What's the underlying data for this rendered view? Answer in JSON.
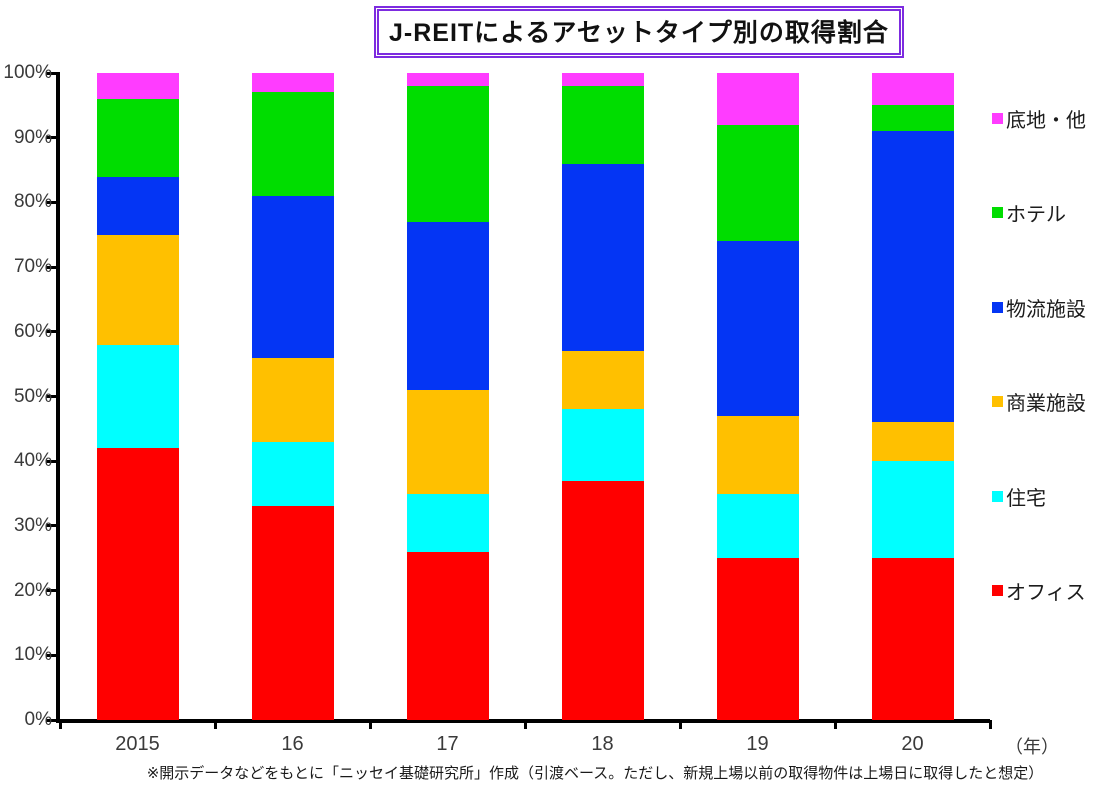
{
  "title": "J-REITによるアセットタイプ別の取得割合",
  "footnote": "※開示データなどをもとに「ニッセイ基礎研究所」作成（引渡ベース。ただし、新規上場以前の取得物件は上場日に取得したと想定）",
  "x_unit": "（年）",
  "chart_data": {
    "type": "bar",
    "stacked": true,
    "percent_stacked": true,
    "title": "J-REITによるアセットタイプ別の取得割合",
    "categories": [
      "2015",
      "16",
      "17",
      "18",
      "19",
      "20"
    ],
    "series": [
      {
        "name": "オフィス",
        "color": "#FF0000",
        "values": [
          42,
          33,
          26,
          37,
          25,
          25
        ]
      },
      {
        "name": "住宅",
        "color": "#00FFFF",
        "values": [
          16,
          10,
          9,
          11,
          10,
          15
        ]
      },
      {
        "name": "商業施設",
        "color": "#FFC000",
        "values": [
          17,
          13,
          16,
          9,
          12,
          6
        ]
      },
      {
        "name": "物流施設",
        "color": "#0435F4",
        "values": [
          9,
          25,
          26,
          29,
          27,
          45
        ]
      },
      {
        "name": "ホテル",
        "color": "#00DD00",
        "values": [
          12,
          16,
          21,
          12,
          18,
          4
        ]
      },
      {
        "name": "底地・他",
        "color": "#FF3CFF",
        "values": [
          4,
          3,
          2,
          2,
          8,
          5
        ]
      }
    ],
    "y_ticks": [
      "0%",
      "10%",
      "20%",
      "30%",
      "40%",
      "50%",
      "60%",
      "70%",
      "80%",
      "90%",
      "100%"
    ],
    "ylim": [
      0,
      100
    ],
    "grid": false,
    "legend_position": "right",
    "legend_order_top_to_bottom": [
      "底地・他",
      "ホテル",
      "物流施設",
      "商業施設",
      "住宅",
      "オフィス"
    ]
  }
}
